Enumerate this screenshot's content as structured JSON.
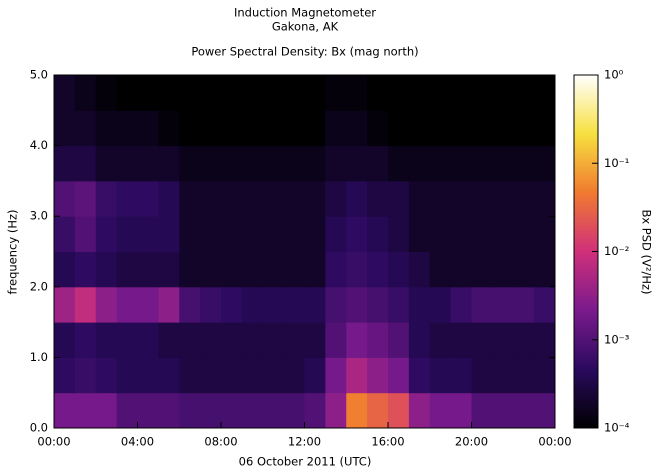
{
  "chart_data": {
    "type": "heatmap",
    "title": "Induction Magnetometer",
    "subtitle": "Gakona, AK",
    "plot_title": "Power Spectral Density: Bx (mag north)",
    "xlabel": "06 October 2011 (UTC)",
    "ylabel": "frequency (Hz)",
    "colorbar_label": "Bx PSD (V²/Hz)",
    "xbins": [
      0,
      1,
      2,
      3,
      4,
      5,
      6,
      7,
      8,
      9,
      10,
      11,
      12,
      13,
      14,
      15,
      16,
      17,
      18,
      19,
      20,
      21,
      22,
      23,
      24
    ],
    "ybins": [
      0,
      0.5,
      1,
      1.5,
      2,
      2.5,
      3,
      3.5,
      4,
      4.5,
      5
    ],
    "values": [
      [
        0.002,
        0.002,
        0.002,
        0.001,
        0.001,
        0.001,
        0.0008,
        0.0008,
        0.0008,
        0.0008,
        0.0008,
        0.0008,
        0.001,
        0.003,
        0.05,
        0.03,
        0.02,
        0.003,
        0.002,
        0.002,
        0.001,
        0.001,
        0.001,
        0.001
      ],
      [
        0.0005,
        0.0006,
        0.0005,
        0.0004,
        0.0004,
        0.0004,
        0.0003,
        0.0003,
        0.0003,
        0.0003,
        0.0003,
        0.0003,
        0.0004,
        0.002,
        0.005,
        0.003,
        0.002,
        0.0005,
        0.0004,
        0.0004,
        0.0003,
        0.0003,
        0.0003,
        0.0003
      ],
      [
        0.0004,
        0.0005,
        0.0004,
        0.0004,
        0.0004,
        0.0003,
        0.0003,
        0.0003,
        0.0003,
        0.0003,
        0.0003,
        0.0003,
        0.0003,
        0.001,
        0.002,
        0.0015,
        0.001,
        0.0004,
        0.0003,
        0.0003,
        0.0003,
        0.0003,
        0.0003,
        0.0003
      ],
      [
        0.004,
        0.008,
        0.003,
        0.002,
        0.002,
        0.003,
        0.0008,
        0.0006,
        0.0005,
        0.0004,
        0.0004,
        0.0004,
        0.0004,
        0.0008,
        0.001,
        0.0008,
        0.0006,
        0.0004,
        0.0004,
        0.0006,
        0.0008,
        0.0008,
        0.0008,
        0.0006
      ],
      [
        0.0004,
        0.0005,
        0.0004,
        0.0003,
        0.0003,
        0.0003,
        0.0002,
        0.0002,
        0.0002,
        0.0002,
        0.0002,
        0.0002,
        0.0002,
        0.0005,
        0.0006,
        0.0005,
        0.0004,
        0.0003,
        0.0002,
        0.0002,
        0.0002,
        0.0002,
        0.0002,
        0.0002
      ],
      [
        0.0006,
        0.001,
        0.0005,
        0.0004,
        0.0004,
        0.0004,
        0.0002,
        0.0002,
        0.0002,
        0.0002,
        0.0002,
        0.0002,
        0.0002,
        0.0004,
        0.0005,
        0.0004,
        0.0003,
        0.0002,
        0.0002,
        0.0002,
        0.0002,
        0.0002,
        0.0002,
        0.0002
      ],
      [
        0.001,
        0.0012,
        0.0006,
        0.0005,
        0.0005,
        0.0004,
        0.0002,
        0.0002,
        0.0002,
        0.0002,
        0.0002,
        0.0002,
        0.0002,
        0.0003,
        0.0004,
        0.0003,
        0.0003,
        0.0002,
        0.0002,
        0.0002,
        0.0002,
        0.0002,
        0.0002,
        0.0002
      ],
      [
        0.0003,
        0.0003,
        0.0002,
        0.0002,
        0.0002,
        0.0002,
        0.00015,
        0.00015,
        0.00015,
        0.00015,
        0.00015,
        0.00015,
        0.00015,
        0.0002,
        0.0002,
        0.0002,
        0.00015,
        0.00015,
        0.00015,
        0.00015,
        0.00015,
        0.00015,
        0.00015,
        0.00015
      ],
      [
        0.0002,
        0.0002,
        0.00015,
        0.00015,
        0.00015,
        0.00012,
        0.0001,
        0.0001,
        0.0001,
        0.0001,
        0.0001,
        0.0001,
        0.0001,
        0.00015,
        0.00015,
        0.00012,
        0.0001,
        0.0001,
        0.0001,
        0.0001,
        0.0001,
        0.0001,
        0.0001,
        0.0001
      ],
      [
        0.0002,
        0.00015,
        0.00012,
        0.0001,
        0.0001,
        0.0001,
        0.0001,
        0.0001,
        0.0001,
        0.0001,
        0.0001,
        0.0001,
        0.0001,
        0.00012,
        0.00012,
        0.0001,
        0.0001,
        0.0001,
        0.0001,
        0.0001,
        0.0001,
        0.0001,
        0.0001,
        0.0001
      ]
    ],
    "xlim": [
      0,
      24
    ],
    "xticks": [
      {
        "value": 0,
        "label": "00:00"
      },
      {
        "value": 4,
        "label": "04:00"
      },
      {
        "value": 8,
        "label": "08:00"
      },
      {
        "value": 12,
        "label": "12:00"
      },
      {
        "value": 16,
        "label": "16:00"
      },
      {
        "value": 20,
        "label": "20:00"
      },
      {
        "value": 24,
        "label": "00:00"
      }
    ],
    "ylim": [
      0,
      5
    ],
    "yticks": [
      {
        "value": 0,
        "label": "0.0"
      },
      {
        "value": 1,
        "label": "1.0"
      },
      {
        "value": 2,
        "label": "2.0"
      },
      {
        "value": 3,
        "label": "3.0"
      },
      {
        "value": 4,
        "label": "4.0"
      },
      {
        "value": 5,
        "label": "5.0"
      }
    ],
    "zlim": [
      0.0001,
      1
    ],
    "zscale": "log",
    "zticks": [
      {
        "value": 0.0001,
        "label": "10⁻⁴"
      },
      {
        "value": 0.001,
        "label": "10⁻³"
      },
      {
        "value": 0.01,
        "label": "10⁻²"
      },
      {
        "value": 0.1,
        "label": "10⁻¹"
      },
      {
        "value": 1,
        "label": "10⁰"
      }
    ],
    "colormap": [
      "#000000",
      "#2a0a5e",
      "#7a1a8c",
      "#d0307a",
      "#f07a30",
      "#f7e040",
      "#ffffff"
    ],
    "grid": false
  }
}
